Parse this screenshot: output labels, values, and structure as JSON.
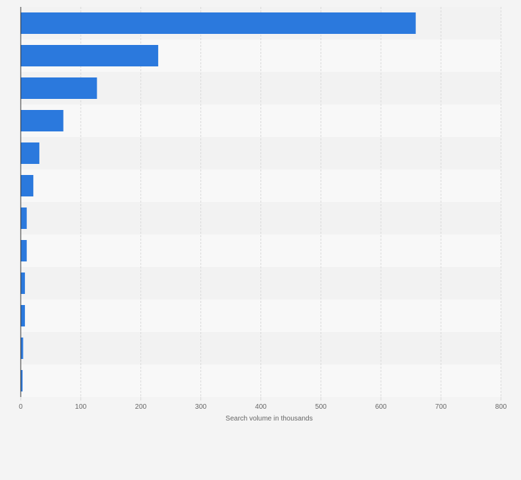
{
  "colors": {
    "page_background": "#f4f4f4",
    "band_dark": "#f2f2f2",
    "band_light": "#f8f8f8",
    "bar": "#2b79dd",
    "gridline": "#d9d9d9",
    "axis": "#333333",
    "tick_label": "#666666"
  },
  "chart_data": {
    "type": "bar",
    "orientation": "horizontal",
    "title": "",
    "xlabel": "Search volume in thousands",
    "ylabel": "",
    "xlim": [
      0,
      800
    ],
    "x_ticks": [
      "0",
      "100",
      "200",
      "300",
      "400",
      "500",
      "600",
      "700",
      "800"
    ],
    "categories": [
      "",
      "",
      "",
      "",
      "",
      "",
      "",
      "",
      "",
      "",
      "",
      ""
    ],
    "values": [
      658,
      229,
      127,
      71,
      31,
      21,
      10,
      10,
      7,
      7,
      4,
      3
    ],
    "grid": true,
    "legend": "none"
  }
}
